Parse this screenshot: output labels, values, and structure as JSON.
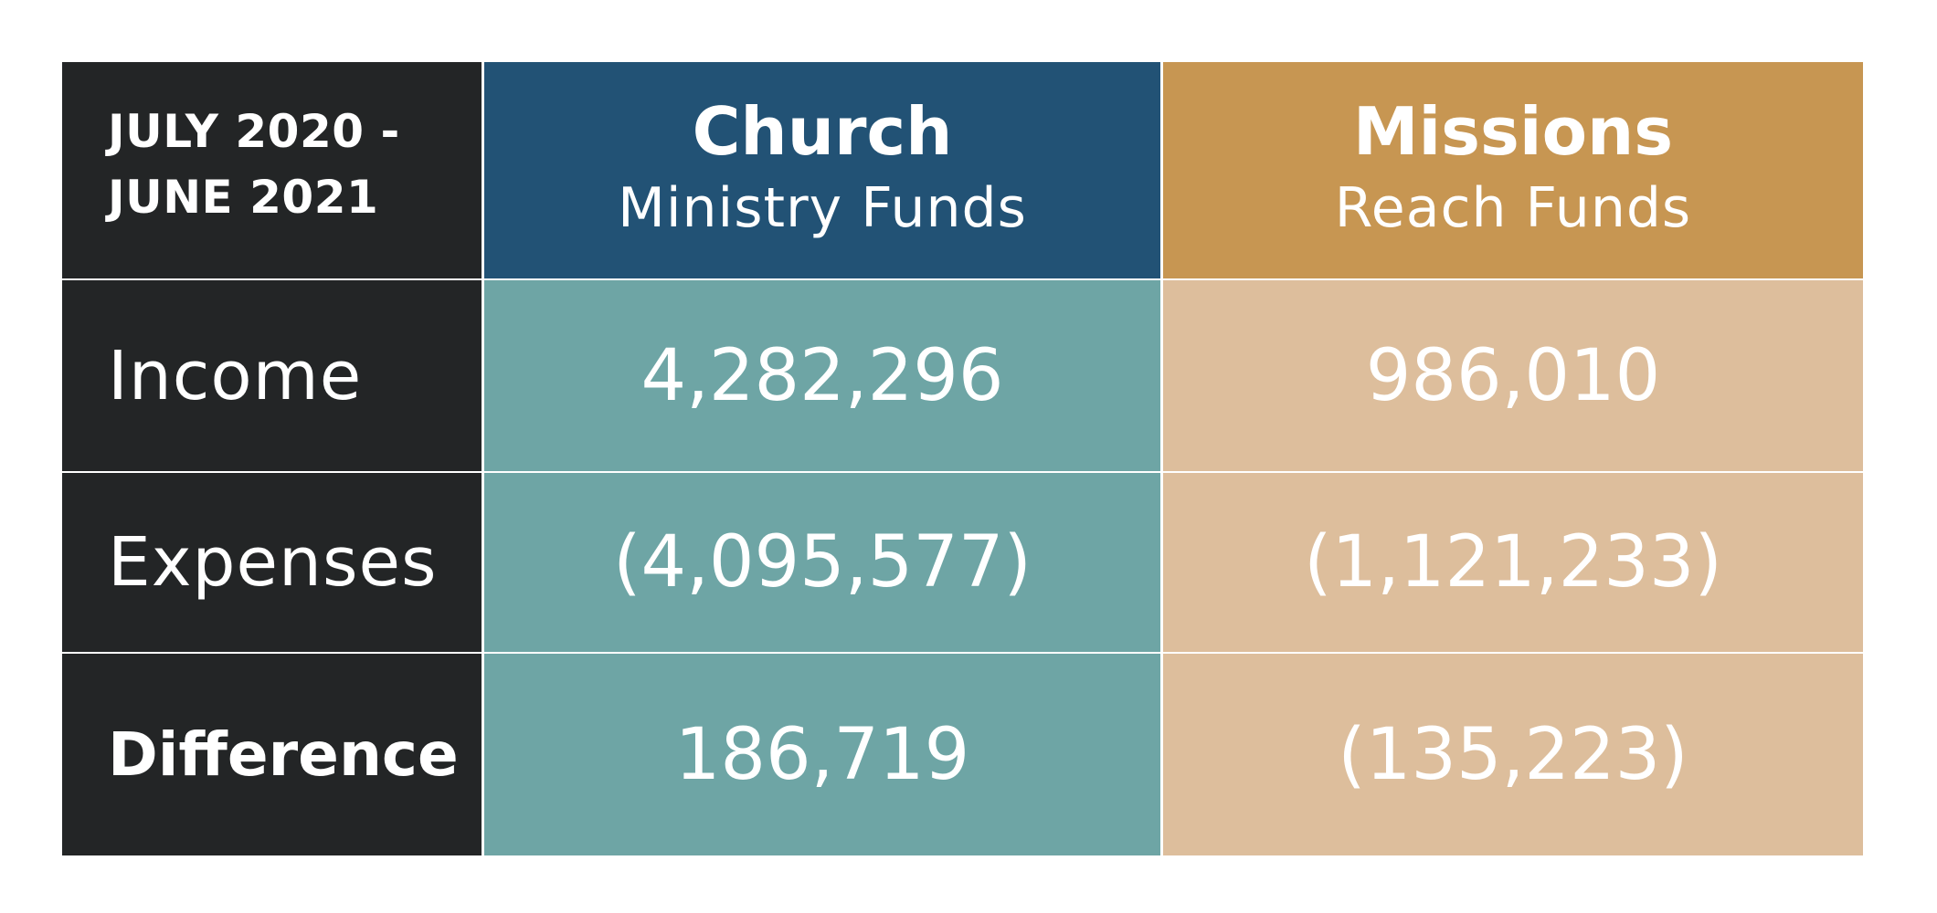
{
  "header": {
    "period_line1": "JULY 2020 -",
    "period_line2": "JUNE 2021",
    "church_title": "Church",
    "church_subtitle": "Ministry Funds",
    "missions_title": "Missions",
    "missions_subtitle": "Reach Funds"
  },
  "rows": [
    {
      "label": "Income",
      "church": "4,282,296",
      "missions": "986,010"
    },
    {
      "label": "Expenses",
      "church": "(4,095,577)",
      "missions": "(1,121,233)"
    },
    {
      "label": "Difference",
      "church": "186,719",
      "missions": "(135,223)"
    }
  ],
  "colors": {
    "label_bg": "#232526",
    "church_header_bg": "#225275",
    "missions_header_bg": "#c79652",
    "church_cell_bg": "#6ea5a5",
    "missions_cell_bg": "#ddbe9c",
    "text": "#ffffff"
  }
}
